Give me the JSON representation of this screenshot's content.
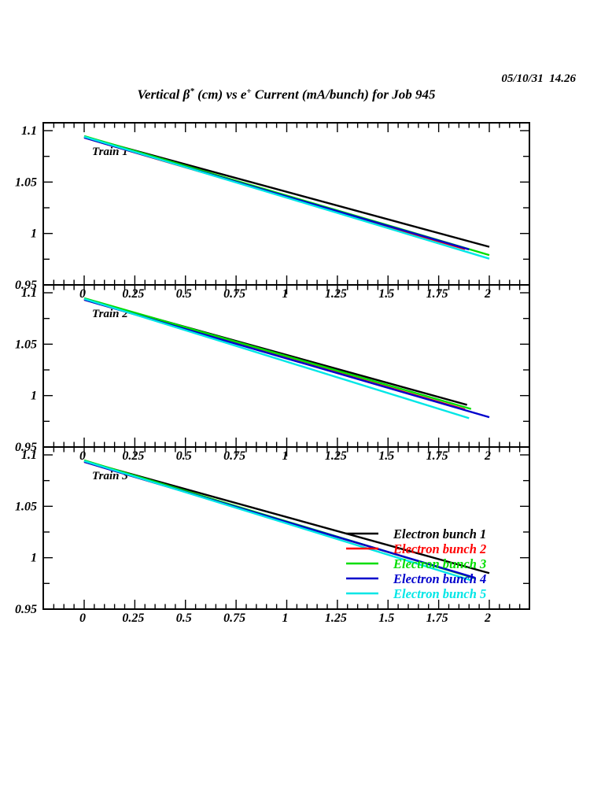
{
  "header": {
    "timestamp": "05/10/31  14.26",
    "title_parts": {
      "t1": "Vertical β",
      "sup1": "*",
      "t2": " (cm) vs e",
      "sup2": "+",
      "t3": " Current (mA/bunch) for Job 945"
    }
  },
  "chart_data": {
    "type": "line",
    "title": "Vertical β* (cm) vs e+ Current (mA/bunch) for Job 945",
    "timestamp": "05/10/31  14.26",
    "xlabel": "e+ Current (mA/bunch)",
    "ylabel": "Vertical β* (cm)",
    "grid": false,
    "xlim": [
      -0.2,
      2.2
    ],
    "ylim": [
      0.95,
      1.1077
    ],
    "x_ticks_major": [
      0,
      0.25,
      0.5,
      0.75,
      1,
      1.25,
      1.5,
      1.75,
      2
    ],
    "x_tick_labels": [
      "0",
      "0.25",
      "0.5",
      "0.75",
      "1",
      "1.25",
      "1.5",
      "1.75",
      "2"
    ],
    "x_minor_step": 0.05,
    "y_ticks_major": [
      0.95,
      1,
      1.05,
      1.1
    ],
    "y_tick_labels": [
      "0.95",
      "1",
      "1.05",
      "1.1"
    ],
    "y_minor_ticks": [
      0.975,
      1.025,
      1.075
    ],
    "legend": {
      "position": "bottom-right-panel-3",
      "entries": [
        {
          "label": "Electron bunch 1",
          "color": "#000000"
        },
        {
          "label": "Electron bunch 2",
          "color": "#ff0000"
        },
        {
          "label": "Electron bunch 3",
          "color": "#00dd00"
        },
        {
          "label": "Electron bunch 4",
          "color": "#0000cc"
        },
        {
          "label": "Electron bunch 5",
          "color": "#00e6e6"
        }
      ]
    },
    "panels": [
      {
        "label": "Train 1",
        "series": [
          {
            "name": "Electron bunch 1",
            "color": "#000000",
            "points": [
              [
                0,
                1.094
              ],
              [
                2.0,
                0.987
              ]
            ]
          },
          {
            "name": "Electron bunch 2",
            "color": "#ff0000",
            "points": [
              [
                0,
                1.0932
              ],
              [
                1.88,
                0.9848
              ]
            ]
          },
          {
            "name": "Electron bunch 3",
            "color": "#00dd00",
            "points": [
              [
                0,
                1.0947
              ],
              [
                2.0,
                0.979
              ]
            ]
          },
          {
            "name": "Electron bunch 4",
            "color": "#0000cc",
            "points": [
              [
                0,
                1.0932
              ],
              [
                1.9,
                0.9845
              ]
            ]
          },
          {
            "name": "Electron bunch 5",
            "color": "#00e6e6",
            "points": [
              [
                0,
                1.0941
              ],
              [
                2.0,
                0.9755
              ]
            ]
          }
        ]
      },
      {
        "label": "Train 2",
        "series": [
          {
            "name": "Electron bunch 1",
            "color": "#000000",
            "points": [
              [
                0,
                1.094
              ],
              [
                1.89,
                0.991
              ]
            ]
          },
          {
            "name": "Electron bunch 2",
            "color": "#ff0000",
            "points": [
              [
                0,
                1.0932
              ],
              [
                1.88,
                0.9865
              ]
            ]
          },
          {
            "name": "Electron bunch 3",
            "color": "#00dd00",
            "points": [
              [
                0,
                1.0947
              ],
              [
                1.91,
                0.987
              ]
            ]
          },
          {
            "name": "Electron bunch 4",
            "color": "#0000cc",
            "points": [
              [
                0,
                1.0932
              ],
              [
                2.0,
                0.979
              ]
            ]
          },
          {
            "name": "Electron bunch 5",
            "color": "#00e6e6",
            "points": [
              [
                0,
                1.0941
              ],
              [
                1.9,
                0.978
              ]
            ]
          }
        ]
      },
      {
        "label": "Train 3",
        "series": [
          {
            "name": "Electron bunch 1",
            "color": "#000000",
            "points": [
              [
                0,
                1.094
              ],
              [
                2.0,
                0.985
              ]
            ]
          },
          {
            "name": "Electron bunch 2",
            "color": "#ff0000",
            "points": [
              [
                0,
                1.0932
              ],
              [
                1.91,
                0.9815
              ]
            ]
          },
          {
            "name": "Electron bunch 3",
            "color": "#00dd00",
            "points": [
              [
                0,
                1.0947
              ],
              [
                1.93,
                0.98
              ]
            ]
          },
          {
            "name": "Electron bunch 4",
            "color": "#0000cc",
            "points": [
              [
                0,
                1.0932
              ],
              [
                1.93,
                0.9805
              ]
            ]
          },
          {
            "name": "Electron bunch 5",
            "color": "#00e6e6",
            "points": [
              [
                0,
                1.0941
              ],
              [
                1.91,
                0.978
              ]
            ]
          }
        ]
      }
    ]
  }
}
